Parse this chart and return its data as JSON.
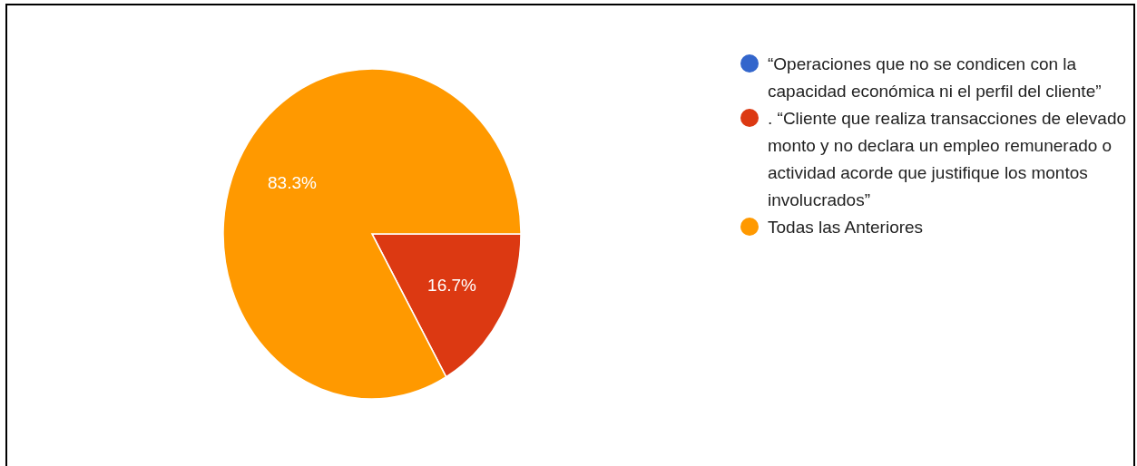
{
  "chart_data": {
    "type": "pie",
    "categories": [
      "“Operaciones que no se condicen con la capacidad económica ni el perfil del cliente”",
      ". “Cliente que realiza transacciones de elevado monto y no declara un empleo remunerado o actividad acorde que justifique los montos involucrados”",
      "Todas las Anteriores"
    ],
    "values": [
      0,
      16.7,
      83.3
    ],
    "colors": [
      "#3366cc",
      "#dc3912",
      "#ff9900"
    ],
    "value_labels": [
      null,
      "16.7%",
      "83.3%"
    ],
    "legend": "right"
  }
}
